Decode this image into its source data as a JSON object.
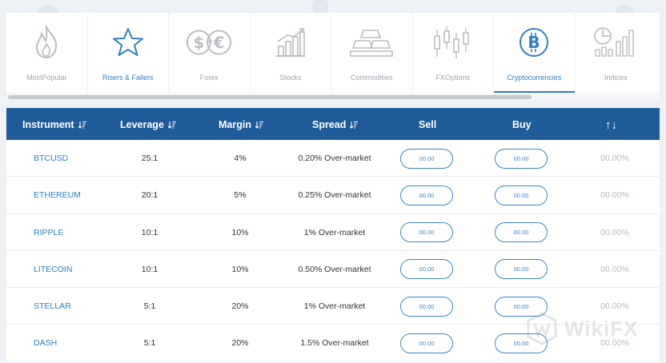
{
  "tabs": [
    {
      "label": "MostPopular",
      "icon": "flame-icon",
      "active": false
    },
    {
      "label": "Risers & Fallers",
      "icon": "star-icon",
      "active": false
    },
    {
      "label": "Forex",
      "icon": "currency-exchange-icon",
      "active": false
    },
    {
      "label": "Stocks",
      "icon": "bar-chart-icon",
      "active": false
    },
    {
      "label": "Commodities",
      "icon": "gold-bars-icon",
      "active": false
    },
    {
      "label": "FXOptions",
      "icon": "candlestick-icon",
      "active": false
    },
    {
      "label": "Cryptocurrencies",
      "icon": "bitcoin-icon",
      "active": true
    },
    {
      "label": "Indices",
      "icon": "index-chart-icon",
      "active": false
    }
  ],
  "table": {
    "headers": {
      "instrument": "Instrument",
      "leverage": "Leverage",
      "margin": "Margin",
      "spread": "Spread",
      "sell": "Sell",
      "buy": "Buy",
      "change": "↑↓"
    },
    "rows": [
      {
        "instrument": "BTCUSD",
        "leverage": "25:1",
        "margin": "4%",
        "spread": "0.20% Over-market",
        "sell": "00.00",
        "buy": "00.00",
        "change": "00.00%"
      },
      {
        "instrument": "ETHEREUM",
        "leverage": "20:1",
        "margin": "5%",
        "spread": "0.25% Over-market",
        "sell": "00.00",
        "buy": "00.00",
        "change": "00.00%"
      },
      {
        "instrument": "RIPPLE",
        "leverage": "10:1",
        "margin": "10%",
        "spread": "1% Over-market",
        "sell": "00.00",
        "buy": "00.00",
        "change": "00.00%"
      },
      {
        "instrument": "LITECOIN",
        "leverage": "10:1",
        "margin": "10%",
        "spread": "0.50% Over-market",
        "sell": "00.00",
        "buy": "00.00",
        "change": "00.00%"
      },
      {
        "instrument": "STELLAR",
        "leverage": "5:1",
        "margin": "20%",
        "spread": "1% Over-market",
        "sell": "00.00",
        "buy": "00.00",
        "change": "00.00%"
      },
      {
        "instrument": "DASH",
        "leverage": "5:1",
        "margin": "20%",
        "spread": "1.5% Over-market",
        "sell": "00.00",
        "buy": "00.00",
        "change": "00.00%"
      }
    ]
  },
  "watermark": {
    "text": "WikiFX"
  },
  "colors": {
    "header_bg": "#1f5b99",
    "accent": "#2f7fc6",
    "muted": "#9ea4ab"
  }
}
